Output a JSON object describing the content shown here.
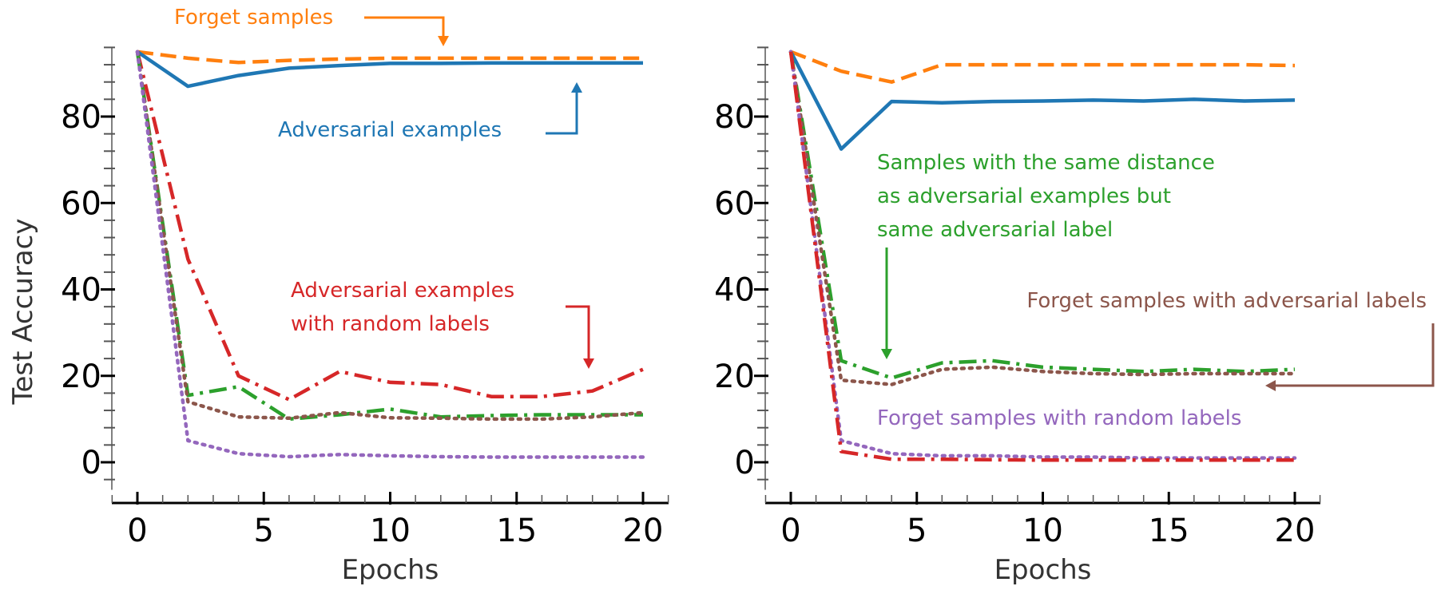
{
  "chart_data": [
    {
      "type": "line",
      "panel": "left",
      "xlabel": "Epochs",
      "ylabel": "Test Accuracy",
      "xlim": [
        0,
        20
      ],
      "ylim": [
        -6,
        96
      ],
      "xticks": [
        0,
        5,
        10,
        15,
        20
      ],
      "yticks": [
        0,
        20,
        40,
        60,
        80
      ],
      "series": [
        {
          "id": "forget",
          "name": "Forget samples",
          "color": "#ff7f0e",
          "style": "dashed",
          "x": [
            0,
            2,
            4,
            6,
            8,
            10,
            12,
            14,
            16,
            18,
            20
          ],
          "y": [
            95,
            93.5,
            92.5,
            93,
            93.3,
            93.5,
            93.5,
            93.5,
            93.5,
            93.5,
            93.5
          ]
        },
        {
          "id": "adv",
          "name": "Adversarial examples",
          "color": "#1f77b4",
          "style": "solid",
          "x": [
            0,
            2,
            4,
            6,
            8,
            10,
            12,
            14,
            16,
            18,
            20
          ],
          "y": [
            95,
            87,
            89.5,
            91.2,
            91.8,
            92.3,
            92.3,
            92.4,
            92.4,
            92.4,
            92.4
          ]
        },
        {
          "id": "adv_rand",
          "name": "Adversarial examples with random labels",
          "color": "#d62728",
          "style": "dashdot",
          "x": [
            0,
            2,
            4,
            6,
            8,
            10,
            12,
            14,
            16,
            18,
            20
          ],
          "y": [
            95,
            47,
            20,
            14.5,
            21,
            18.5,
            18,
            15.2,
            15.2,
            16.5,
            21.5
          ]
        },
        {
          "id": "same_dist",
          "name": "Samples with the same distance as adversarial examples",
          "color": "#2ca02c",
          "style": "dashdot",
          "x": [
            0,
            2,
            4,
            6,
            8,
            10,
            12,
            14,
            16,
            18,
            20
          ],
          "y": [
            95,
            15.5,
            17.5,
            10,
            11,
            12.3,
            10.5,
            10.8,
            11,
            11,
            11
          ]
        },
        {
          "id": "forget_adv",
          "name": "Forget samples with adversarial labels",
          "color": "#8c564b",
          "style": "dotted",
          "x": [
            0,
            2,
            4,
            6,
            8,
            10,
            12,
            14,
            16,
            18,
            20
          ],
          "y": [
            95,
            14,
            10.5,
            10.2,
            11.5,
            10.3,
            10.2,
            10,
            10,
            10.5,
            11.5
          ]
        },
        {
          "id": "forget_rand",
          "name": "Forget samples with random labels",
          "color": "#9467bd",
          "style": "dotted",
          "x": [
            0,
            2,
            4,
            6,
            8,
            10,
            12,
            14,
            16,
            18,
            20
          ],
          "y": [
            95,
            5,
            2,
            1.3,
            1.8,
            1.5,
            1.3,
            1.2,
            1.2,
            1.2,
            1.2
          ]
        }
      ],
      "annotations": [
        {
          "id": "forget",
          "lines": [
            "Forget samples"
          ],
          "color": "#ff7f0e"
        },
        {
          "id": "adv",
          "lines": [
            "Adversarial examples"
          ],
          "color": "#1f77b4"
        },
        {
          "id": "adv_rand",
          "lines": [
            "Adversarial examples",
            "with random labels"
          ],
          "color": "#d62728"
        }
      ]
    },
    {
      "type": "line",
      "panel": "right",
      "xlabel": "Epochs",
      "ylabel": "",
      "xlim": [
        0,
        20
      ],
      "ylim": [
        -6,
        96
      ],
      "xticks": [
        0,
        5,
        10,
        15,
        20
      ],
      "yticks": [
        0,
        20,
        40,
        60,
        80
      ],
      "series": [
        {
          "id": "forget",
          "name": "Forget samples",
          "color": "#ff7f0e",
          "style": "dashed",
          "x": [
            0,
            2,
            4,
            6,
            8,
            10,
            12,
            14,
            16,
            18,
            20
          ],
          "y": [
            95,
            90.5,
            88,
            92,
            92,
            92,
            92,
            92,
            92,
            92,
            91.8
          ]
        },
        {
          "id": "adv",
          "name": "Adversarial examples",
          "color": "#1f77b4",
          "style": "solid",
          "x": [
            0,
            2,
            4,
            6,
            8,
            10,
            12,
            14,
            16,
            18,
            20
          ],
          "y": [
            95,
            72.5,
            83.5,
            83.2,
            83.5,
            83.6,
            83.8,
            83.6,
            84,
            83.6,
            83.8
          ]
        },
        {
          "id": "same_dist",
          "name": "Samples with the same distance as adversarial examples but same adversarial label",
          "color": "#2ca02c",
          "style": "dashdot",
          "x": [
            0,
            2,
            4,
            6,
            8,
            10,
            12,
            14,
            16,
            18,
            20
          ],
          "y": [
            95,
            23.5,
            19.5,
            23,
            23.5,
            22,
            21.5,
            21,
            21.5,
            21,
            21.5
          ]
        },
        {
          "id": "forget_adv",
          "name": "Forget samples with adversarial labels",
          "color": "#8c564b",
          "style": "dotted",
          "x": [
            0,
            2,
            4,
            6,
            8,
            10,
            12,
            14,
            16,
            18,
            20
          ],
          "y": [
            95,
            19,
            18,
            21.5,
            22,
            21,
            20.5,
            20.3,
            20.5,
            20.5,
            20.5
          ]
        },
        {
          "id": "forget_rand",
          "name": "Forget samples with random labels",
          "color": "#9467bd",
          "style": "dotted",
          "x": [
            0,
            2,
            4,
            6,
            8,
            10,
            12,
            14,
            16,
            18,
            20
          ],
          "y": [
            95,
            5,
            2,
            1.5,
            1.5,
            1.2,
            1.2,
            1,
            1,
            1,
            1
          ]
        },
        {
          "id": "adv_rand",
          "name": "Adversarial examples with random labels",
          "color": "#d62728",
          "style": "dashdot",
          "x": [
            0,
            2,
            4,
            6,
            8,
            10,
            12,
            14,
            16,
            18,
            20
          ],
          "y": [
            95,
            2.5,
            0.7,
            0.7,
            0.6,
            0.5,
            0.5,
            0.5,
            0.5,
            0.5,
            0.5
          ]
        }
      ],
      "annotations": [
        {
          "id": "same_dist",
          "lines": [
            "Samples with the same distance",
            "as adversarial examples but",
            "same adversarial label"
          ],
          "color": "#2ca02c"
        },
        {
          "id": "forget_adv",
          "lines": [
            "Forget samples with adversarial labels"
          ],
          "color": "#8c564b"
        },
        {
          "id": "forget_rand",
          "lines": [
            "Forget samples with random labels"
          ],
          "color": "#9467bd"
        }
      ]
    }
  ]
}
